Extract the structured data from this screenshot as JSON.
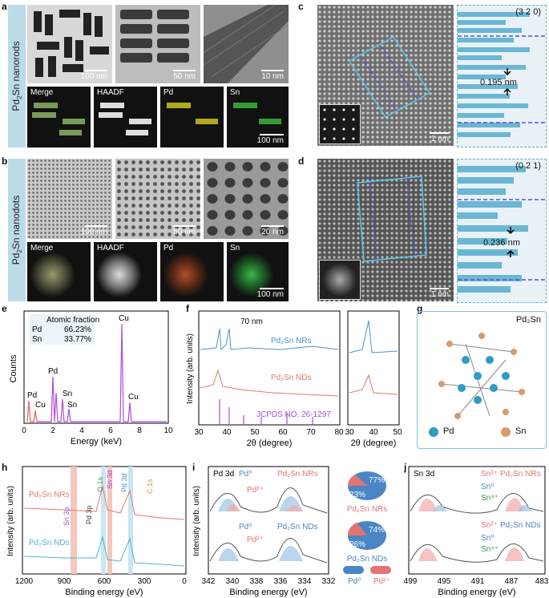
{
  "panels": {
    "a": {
      "letter": "a",
      "side_label_main": "Pd",
      "side_sub": "2",
      "side_label_rest": "Sn nanorods",
      "scales": [
        "100 nm",
        "50 nm",
        "10 nm"
      ],
      "maps": [
        "Merge",
        "HAADF",
        "Pd",
        "Sn"
      ],
      "map_scale": "100 nm"
    },
    "b": {
      "letter": "b",
      "side_label_main": "Pd",
      "side_sub": "2",
      "side_label_rest": "Sn nanodots",
      "scales": [
        "100 nm",
        "50 nm",
        "20 nm"
      ],
      "maps": [
        "Merge",
        "HAADF",
        "Pd",
        "Sn"
      ],
      "map_scale": "100 nm"
    },
    "c": {
      "letter": "c",
      "plane": "(3 2 0)",
      "spacing": "0.195 nm",
      "scale": "1 nm"
    },
    "d": {
      "letter": "d",
      "plane": "(0 2 1)",
      "spacing": "0.236 nm",
      "scale": "1 nm"
    },
    "e": {
      "letter": "e",
      "table_title": "Atomic fraction",
      "rows": [
        [
          "Pd",
          "66.23%"
        ],
        [
          "Sn",
          "33.77%"
        ]
      ],
      "xlabel": "Energy (keV)",
      "ylabel": "Counts",
      "xticks": [
        "0",
        "2",
        "4",
        "6",
        "8",
        "10"
      ],
      "peaks": [
        "Pd",
        "Cu",
        "Pd",
        "Sn",
        "Sn",
        "Cu",
        "Cu"
      ]
    },
    "f": {
      "letter": "f",
      "xlabel": "2θ (degree)",
      "ylabel": "Intensity (arb. units)",
      "xticks": [
        "30",
        "40",
        "50",
        "60",
        "70",
        "80"
      ],
      "xticks2": [
        "30",
        "40",
        "50"
      ],
      "inset": "70 nm",
      "nr": "Pd₂Sn NRs",
      "nd": "Pd₂Sn NDs",
      "ref": "JCPDS NO. 26-1297"
    },
    "g": {
      "letter": "g",
      "title": "Pd₂Sn",
      "legend_pd": "Pd",
      "legend_sn": "Sn"
    },
    "h": {
      "letter": "h",
      "xlabel": "Binding energy (eV)",
      "ylabel": "Intensity (arb. units)",
      "xticks": [
        "1200",
        "900",
        "600",
        "300",
        "0"
      ],
      "nr": "Pd₂Sn NRs",
      "nd": "Pd₂Sn NDs",
      "peaks": [
        "Sn 3p",
        "Pd 3p",
        "O 1s",
        "Sn 3d",
        "Pd 3d",
        "C 1s"
      ]
    },
    "i": {
      "letter": "i",
      "title": "Pd 3d",
      "xlabel": "Binding energy (eV)",
      "ylabel": "Intensity (arb. units)",
      "xticks": [
        "342",
        "340",
        "338",
        "336",
        "334",
        "332"
      ],
      "nr": "Pd₂Sn NRs",
      "nd": "Pd₂Sn NDs",
      "pd0": "Pd⁰",
      "pd2": "Pd²⁺",
      "pie_nr": [
        "77%",
        "23%"
      ],
      "pie_nd": [
        "74%",
        "26%"
      ],
      "legend_pd0": "Pd⁰",
      "legend_pd2": "Pd²⁺"
    },
    "j": {
      "letter": "j",
      "title": "Sn 3d",
      "xlabel": "Binding energy (eV)",
      "xticks": [
        "499",
        "495",
        "491",
        "487",
        "483"
      ],
      "nr": "Pd₂Sn NRs",
      "nd": "Pd₂Sn NDs",
      "sn2": "Sn²⁺",
      "sn0": "Sn⁰",
      "sn4": "Sn⁴⁺"
    }
  },
  "colors": {
    "nr": "#4a90d9",
    "nd": "#e07a6a",
    "ref": "#a64bd9",
    "eds": "#b04bd9",
    "pd": "#2f9cc3",
    "sn": "#d99a6c",
    "pd0": "#4a86c5",
    "pd2": "#e57373"
  }
}
